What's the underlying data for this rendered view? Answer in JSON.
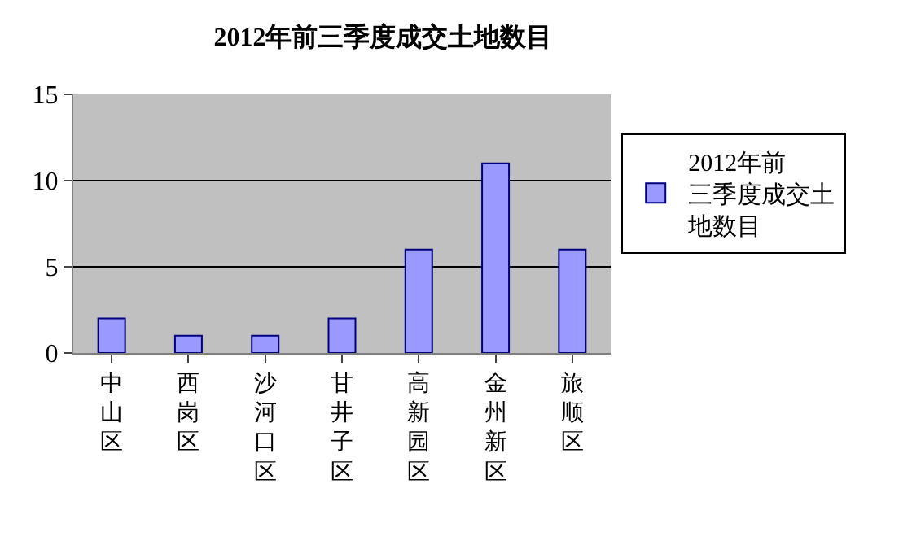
{
  "chart_data": {
    "type": "bar",
    "title": "2012年前三季度成交土地数目",
    "categories": [
      "中山区",
      "西岗区",
      "沙河口区",
      "甘井子区",
      "高新园区",
      "金州新区",
      "旅顺区"
    ],
    "series": [
      {
        "name": "2012年前三季度成交土地数目",
        "color": "#9999ff",
        "values": [
          2,
          1,
          1,
          2,
          6,
          11,
          6
        ]
      }
    ],
    "ylim": [
      0,
      15
    ],
    "yticks": [
      0,
      5,
      10,
      15
    ],
    "grid": "y",
    "legend": "right"
  }
}
